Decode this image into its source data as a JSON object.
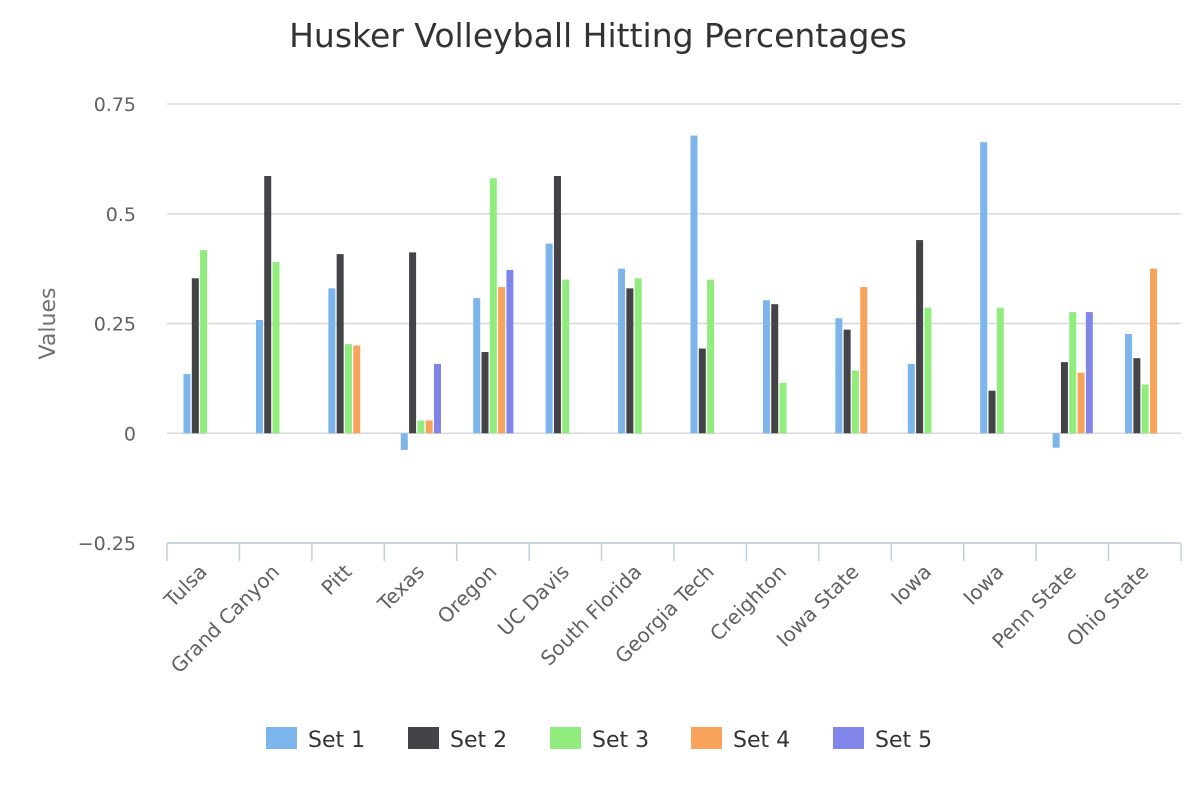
{
  "chart_data": {
    "type": "bar",
    "title": "Husker Volleyball Hitting Percentages",
    "xlabel": "",
    "ylabel": "Values",
    "ylim": [
      -0.25,
      0.75
    ],
    "yticks": [
      -0.25,
      0,
      0.25,
      0.5,
      0.75
    ],
    "ytick_labels": [
      "−0.25",
      "0",
      "0.25",
      "0.5",
      "0.75"
    ],
    "grid": true,
    "legend_position": "bottom",
    "categories": [
      "Tulsa",
      "Grand Canyon",
      "Pitt",
      "Texas",
      "Oregon",
      "UC Davis",
      "South Florida",
      "Georgia Tech",
      "Creighton",
      "Iowa State",
      "Iowa",
      "Iowa",
      "Penn State",
      "Ohio State"
    ],
    "series": [
      {
        "name": "Set 1",
        "color": "#7cb5ec",
        "values": [
          0.135,
          0.258,
          0.33,
          -0.038,
          0.308,
          0.432,
          0.375,
          0.678,
          0.303,
          0.262,
          0.158,
          0.663,
          -0.033,
          0.226
        ]
      },
      {
        "name": "Set 2",
        "color": "#434348",
        "values": [
          0.353,
          0.586,
          0.408,
          0.412,
          0.185,
          0.586,
          0.33,
          0.193,
          0.294,
          0.236,
          0.44,
          0.097,
          0.162,
          0.171
        ]
      },
      {
        "name": "Set 3",
        "color": "#90ed7d",
        "values": [
          0.417,
          0.39,
          0.203,
          0.029,
          0.581,
          0.35,
          0.353,
          0.35,
          0.115,
          0.143,
          0.286,
          0.286,
          0.276,
          0.111
        ]
      },
      {
        "name": "Set 4",
        "color": "#f7a35c",
        "values": [
          null,
          null,
          0.2,
          0.029,
          0.333,
          null,
          null,
          null,
          null,
          0.333,
          null,
          null,
          0.138,
          0.375
        ]
      },
      {
        "name": "Set 5",
        "color": "#8085e9",
        "values": [
          null,
          null,
          null,
          0.158,
          0.372,
          null,
          null,
          null,
          null,
          null,
          null,
          null,
          0.276,
          null
        ]
      }
    ]
  }
}
